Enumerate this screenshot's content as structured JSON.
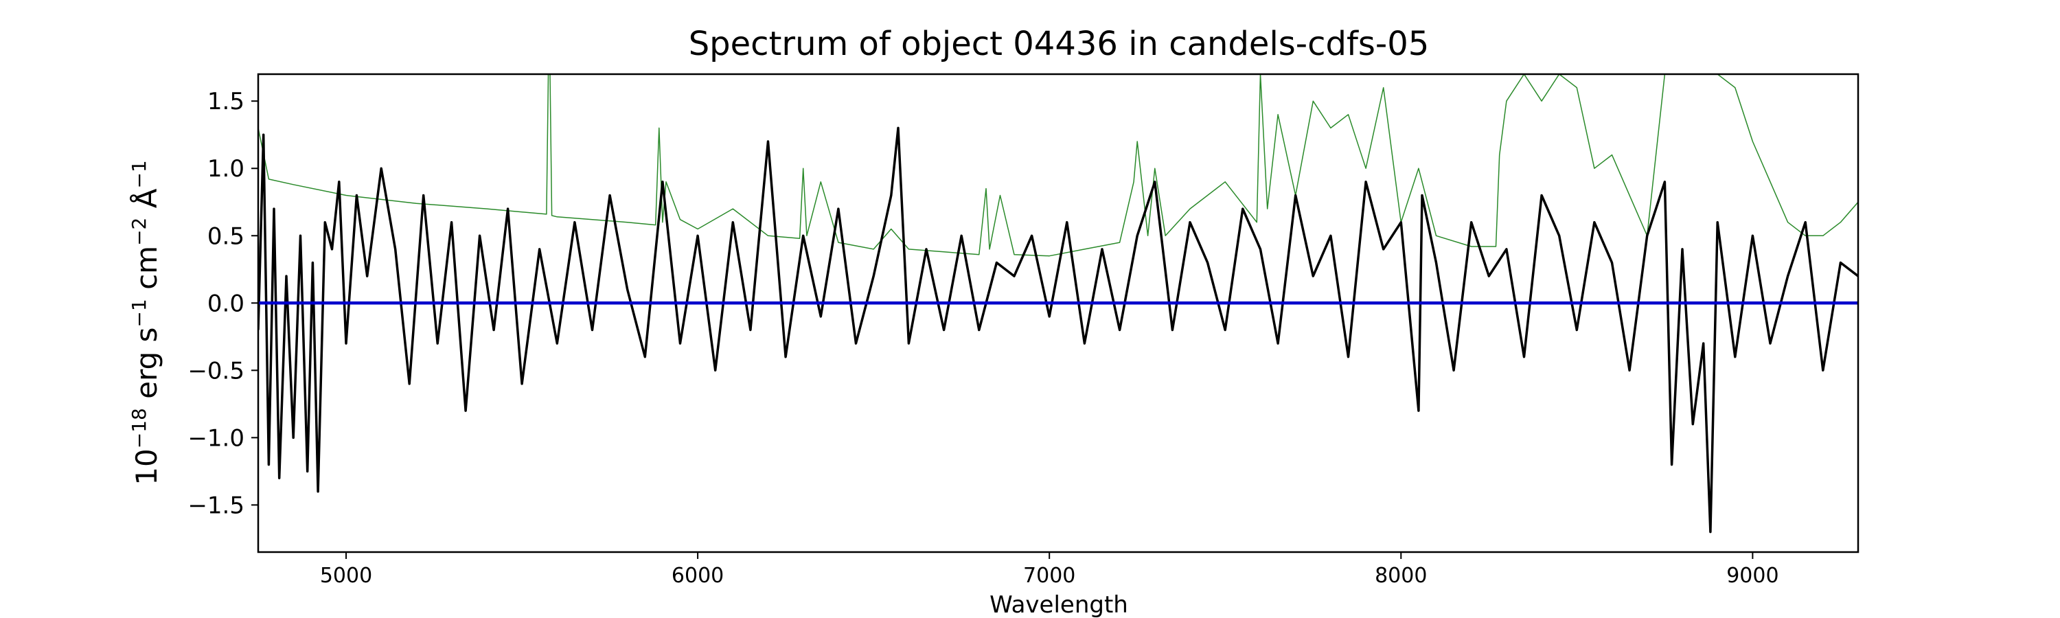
{
  "chart_data": {
    "type": "line",
    "title": "Spectrum of object 04436 in candels-cdfs-05",
    "xlabel": "Wavelength",
    "ylabel_parts": [
      "10",
      "−18",
      " erg s",
      "−1",
      " cm",
      "−2",
      " Å",
      "−1"
    ],
    "xlim": [
      4750,
      9300
    ],
    "ylim": [
      -1.85,
      1.7
    ],
    "xticks": [
      5000,
      6000,
      7000,
      8000,
      9000
    ],
    "yticks": [
      1.5,
      1.0,
      0.5,
      0.0,
      -0.5,
      -1.0,
      -1.5
    ],
    "ytick_labels": [
      "1.5",
      "1.0",
      "0.5",
      "0.0",
      "−0.5",
      "−1.0",
      "−1.5"
    ],
    "grid": false,
    "series": [
      {
        "role": "error",
        "color": "#2a8a2a",
        "x": [
          4750,
          4780,
          4850,
          5000,
          5200,
          5400,
          5570,
          5575,
          5580,
          5585,
          5600,
          5800,
          5880,
          5890,
          5900,
          5910,
          5950,
          6000,
          6100,
          6200,
          6290,
          6300,
          6310,
          6350,
          6400,
          6500,
          6550,
          6600,
          6700,
          6800,
          6820,
          6830,
          6860,
          6900,
          7000,
          7100,
          7200,
          7240,
          7250,
          7280,
          7300,
          7330,
          7400,
          7500,
          7590,
          7600,
          7620,
          7650,
          7700,
          7750,
          7800,
          7850,
          7900,
          7950,
          8000,
          8050,
          8100,
          8200,
          8270,
          8280,
          8300,
          8350,
          8400,
          8450,
          8500,
          8550,
          8600,
          8700,
          8750,
          8760,
          8800,
          8850,
          8900,
          8950,
          9000,
          9050,
          9100,
          9150,
          9200,
          9250,
          9300
        ],
        "y": [
          1.3,
          0.92,
          0.88,
          0.8,
          0.74,
          0.7,
          0.66,
          1.7,
          1.7,
          0.65,
          0.64,
          0.6,
          0.58,
          1.3,
          0.6,
          0.9,
          0.62,
          0.55,
          0.7,
          0.5,
          0.48,
          1.0,
          0.5,
          0.9,
          0.45,
          0.4,
          0.55,
          0.4,
          0.38,
          0.36,
          0.85,
          0.4,
          0.8,
          0.36,
          0.35,
          0.4,
          0.45,
          0.9,
          1.2,
          0.5,
          1.0,
          0.5,
          0.7,
          0.9,
          0.6,
          1.7,
          0.7,
          1.4,
          0.8,
          1.5,
          1.3,
          1.4,
          1.0,
          1.6,
          0.6,
          1.0,
          0.5,
          0.42,
          0.42,
          1.1,
          1.5,
          1.7,
          1.5,
          1.7,
          1.6,
          1.0,
          1.1,
          0.5,
          1.7,
          1.7,
          1.7,
          1.7,
          1.7,
          1.6,
          1.2,
          0.9,
          0.6,
          0.5,
          0.5,
          0.6,
          0.75
        ]
      },
      {
        "role": "flux",
        "color": "#000000",
        "x": [
          4750,
          4765,
          4780,
          4795,
          4810,
          4830,
          4850,
          4870,
          4890,
          4905,
          4920,
          4940,
          4960,
          4980,
          5000,
          5030,
          5060,
          5100,
          5140,
          5180,
          5220,
          5260,
          5300,
          5340,
          5380,
          5420,
          5460,
          5500,
          5550,
          5600,
          5650,
          5700,
          5750,
          5800,
          5850,
          5900,
          5950,
          6000,
          6050,
          6100,
          6150,
          6200,
          6250,
          6300,
          6350,
          6400,
          6450,
          6500,
          6550,
          6570,
          6600,
          6650,
          6700,
          6750,
          6800,
          6850,
          6900,
          6950,
          7000,
          7050,
          7100,
          7150,
          7200,
          7250,
          7300,
          7350,
          7400,
          7450,
          7500,
          7550,
          7600,
          7650,
          7700,
          7750,
          7800,
          7850,
          7900,
          7950,
          8000,
          8050,
          8060,
          8100,
          8150,
          8200,
          8250,
          8300,
          8350,
          8400,
          8450,
          8500,
          8550,
          8600,
          8650,
          8700,
          8750,
          8770,
          8800,
          8830,
          8860,
          8880,
          8900,
          8950,
          9000,
          9050,
          9100,
          9150,
          9200,
          9250,
          9300
        ],
        "y": [
          -0.2,
          1.25,
          -1.2,
          0.7,
          -1.3,
          0.2,
          -1.0,
          0.5,
          -1.25,
          0.3,
          -1.4,
          0.6,
          0.4,
          0.9,
          -0.3,
          0.8,
          0.2,
          1.0,
          0.4,
          -0.6,
          0.8,
          -0.3,
          0.6,
          -0.8,
          0.5,
          -0.2,
          0.7,
          -0.6,
          0.4,
          -0.3,
          0.6,
          -0.2,
          0.8,
          0.1,
          -0.4,
          0.9,
          -0.3,
          0.5,
          -0.5,
          0.6,
          -0.2,
          1.2,
          -0.4,
          0.5,
          -0.1,
          0.7,
          -0.3,
          0.2,
          0.8,
          1.3,
          -0.3,
          0.4,
          -0.2,
          0.5,
          -0.2,
          0.3,
          0.2,
          0.5,
          -0.1,
          0.6,
          -0.3,
          0.4,
          -0.2,
          0.5,
          0.9,
          -0.2,
          0.6,
          0.3,
          -0.2,
          0.7,
          0.4,
          -0.3,
          0.8,
          0.2,
          0.5,
          -0.4,
          0.9,
          0.4,
          0.6,
          -0.8,
          0.8,
          0.3,
          -0.5,
          0.6,
          0.2,
          0.4,
          -0.4,
          0.8,
          0.5,
          -0.2,
          0.6,
          0.3,
          -0.5,
          0.5,
          0.9,
          -1.2,
          0.4,
          -0.9,
          -0.3,
          -1.7,
          0.6,
          -0.4,
          0.5,
          -0.3,
          0.2,
          0.6,
          -0.5,
          0.3,
          0.2
        ]
      },
      {
        "role": "zero-line",
        "color": "#0000cc",
        "x": [
          4750,
          9300
        ],
        "y": [
          0.0,
          0.0
        ]
      }
    ]
  }
}
